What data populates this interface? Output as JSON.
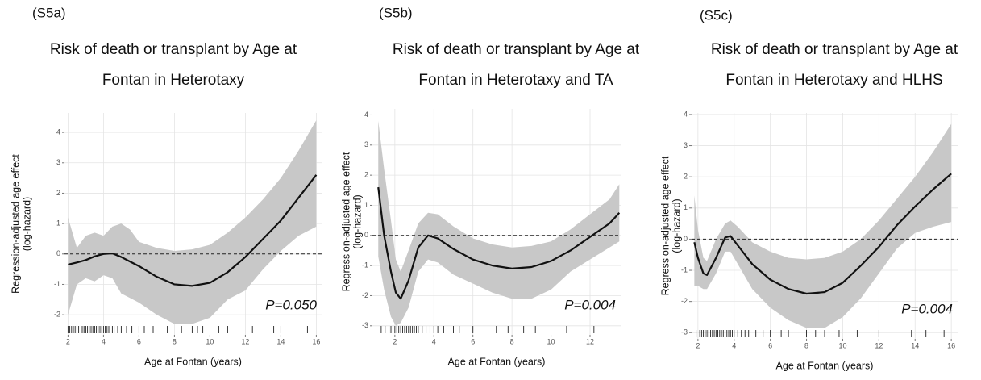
{
  "chart_data": [
    {
      "type": "line",
      "panel": "(S5a)",
      "title": [
        "Risk of death or transplant by Age at",
        "Fontan in Heterotaxy"
      ],
      "xlabel": "Age at Fontan (years)",
      "ylabel": [
        "Regression-adjusted age effect",
        "(log-hazard)"
      ],
      "annotation": "P=0.050",
      "color": "#111111",
      "band_color": "#c8c8c8",
      "grid": true,
      "hline": 0,
      "xlim": [
        1.8,
        16.3
      ],
      "xticks": [
        2,
        4,
        6,
        8,
        10,
        12,
        14,
        16
      ],
      "ylim": [
        -2.66,
        4.64
      ],
      "yticks": [
        -2,
        -1,
        0,
        1,
        2,
        3,
        4
      ],
      "x": [
        2,
        2.5,
        3,
        3.5,
        4,
        4.5,
        5,
        5.5,
        6,
        7,
        8,
        9,
        10,
        11,
        12,
        13,
        14,
        15,
        16
      ],
      "values": [
        -0.35,
        -0.28,
        -0.2,
        -0.08,
        0,
        0.02,
        -0.1,
        -0.25,
        -0.4,
        -0.75,
        -1.0,
        -1.05,
        -0.95,
        -0.6,
        -0.1,
        0.5,
        1.1,
        1.85,
        2.6
      ],
      "upper": [
        1.2,
        0.2,
        0.6,
        0.7,
        0.6,
        0.9,
        1.0,
        0.8,
        0.4,
        0.2,
        0.1,
        0.15,
        0.3,
        0.7,
        1.2,
        1.8,
        2.5,
        3.4,
        4.4
      ],
      "lower": [
        -2.0,
        -1.0,
        -0.8,
        -0.9,
        -0.7,
        -0.8,
        -1.3,
        -1.45,
        -1.6,
        -2.0,
        -2.3,
        -2.3,
        -2.1,
        -1.5,
        -1.2,
        -0.5,
        0.1,
        0.6,
        0.9
      ],
      "rug": [
        2.0,
        2.1,
        2.2,
        2.3,
        2.4,
        2.5,
        2.6,
        2.8,
        2.9,
        3.0,
        3.1,
        3.2,
        3.3,
        3.4,
        3.5,
        3.6,
        3.7,
        3.8,
        3.9,
        4.0,
        4.1,
        4.2,
        4.3,
        4.5,
        4.6,
        4.8,
        5.0,
        5.3,
        5.6,
        6.0,
        6.3,
        6.8,
        7.6,
        8.4,
        9.0,
        9.3,
        9.6,
        10.5,
        11.0,
        12.4,
        13.6,
        14.0,
        15.5
      ]
    },
    {
      "type": "line",
      "panel": "(S5b)",
      "title": [
        "Risk of death or transplant by Age at",
        "Fontan in Heterotaxy and TA"
      ],
      "xlabel": "Age at Fontan (years)",
      "ylabel": [
        "Regression-adjusted age effect",
        "(log-hazard)"
      ],
      "annotation": "P=0.004",
      "color": "#111111",
      "band_color": "#c8c8c8",
      "grid": true,
      "hline": 0,
      "xlim": [
        0.85,
        13.57
      ],
      "xticks": [
        2,
        4,
        6,
        8,
        10,
        12
      ],
      "ylim": [
        -3.3,
        4.2
      ],
      "yticks": [
        -3,
        -2,
        -1,
        0,
        1,
        2,
        3,
        4
      ],
      "x": [
        1.15,
        1.45,
        1.8,
        2.05,
        2.3,
        2.7,
        3.2,
        3.7,
        4.2,
        5,
        6,
        7,
        8,
        9,
        10,
        11,
        12,
        13,
        13.5
      ],
      "values": [
        1.6,
        0.0,
        -1.2,
        -1.9,
        -2.1,
        -1.5,
        -0.4,
        0,
        -0.1,
        -0.45,
        -0.8,
        -1.0,
        -1.1,
        -1.05,
        -0.85,
        -0.5,
        -0.05,
        0.4,
        0.75
      ],
      "upper": [
        3.8,
        2.2,
        0.5,
        -0.8,
        -1.2,
        -0.5,
        0.4,
        0.75,
        0.7,
        0.3,
        -0.1,
        -0.3,
        -0.4,
        -0.35,
        -0.2,
        0.2,
        0.7,
        1.2,
        1.7
      ],
      "lower": [
        -0.7,
        -1.8,
        -2.7,
        -3.0,
        -2.9,
        -2.4,
        -1.2,
        -0.8,
        -0.9,
        -1.3,
        -1.6,
        -1.9,
        -2.1,
        -2.1,
        -1.8,
        -1.2,
        -0.8,
        -0.4,
        -0.2
      ],
      "rug": [
        1.3,
        1.5,
        1.7,
        1.8,
        1.9,
        2.0,
        2.1,
        2.2,
        2.3,
        2.4,
        2.5,
        2.6,
        2.7,
        2.8,
        2.9,
        3.0,
        3.1,
        3.2,
        3.4,
        3.6,
        3.8,
        4.0,
        4.2,
        4.5,
        5.0,
        5.3,
        6.0,
        7.2,
        7.8,
        8.6,
        9.2,
        10.0,
        10.8,
        12.2
      ]
    },
    {
      "type": "line",
      "panel": "(S5c)",
      "title": [
        "Risk of death or transplant by Age at",
        "Fontan in Heterotaxy and HLHS"
      ],
      "xlabel": "Age at Fontan (years)",
      "ylabel": [
        "Regression-adjusted age effect",
        "(log-hazard)"
      ],
      "annotation": "P=0.004",
      "color": "#111111",
      "band_color": "#c8c8c8",
      "grid": true,
      "hline": 0,
      "xlim": [
        1.65,
        16.35
      ],
      "xticks": [
        2,
        4,
        6,
        8,
        10,
        12,
        14,
        16
      ],
      "ylim": [
        -3.2,
        4.05
      ],
      "yticks": [
        -3,
        -2,
        -1,
        0,
        1,
        2,
        3,
        4
      ],
      "x": [
        1.8,
        2,
        2.3,
        2.5,
        3,
        3.5,
        3.8,
        4.2,
        5,
        6,
        7,
        8,
        9,
        10,
        11,
        12,
        13,
        14,
        15,
        16
      ],
      "values": [
        -0.1,
        -0.6,
        -1.1,
        -1.15,
        -0.6,
        0.05,
        0.1,
        -0.2,
        -0.8,
        -1.3,
        -1.6,
        -1.75,
        -1.7,
        -1.4,
        -0.85,
        -0.25,
        0.45,
        1.05,
        1.6,
        2.1
      ],
      "upper": [
        1.4,
        0.3,
        -0.6,
        -0.7,
        0.0,
        0.5,
        0.6,
        0.4,
        -0.1,
        -0.4,
        -0.6,
        -0.65,
        -0.6,
        -0.4,
        0.0,
        0.6,
        1.3,
        2.0,
        2.8,
        3.7
      ],
      "lower": [
        -1.5,
        -1.5,
        -1.6,
        -1.6,
        -1.1,
        -0.4,
        -0.4,
        -0.8,
        -1.6,
        -2.2,
        -2.6,
        -2.85,
        -2.85,
        -2.5,
        -1.9,
        -1.1,
        -0.3,
        0.2,
        0.4,
        0.55
      ],
      "rug": [
        1.9,
        2.1,
        2.2,
        2.3,
        2.4,
        2.5,
        2.6,
        2.7,
        2.8,
        2.9,
        3.0,
        3.1,
        3.2,
        3.3,
        3.4,
        3.5,
        3.6,
        3.7,
        3.8,
        3.9,
        4.0,
        4.2,
        4.4,
        4.6,
        4.8,
        5.2,
        5.6,
        6.0,
        6.6,
        7.0,
        8.0,
        8.5,
        9.0,
        9.8,
        10.8,
        12.0,
        13.8,
        14.6,
        15.6
      ]
    }
  ]
}
